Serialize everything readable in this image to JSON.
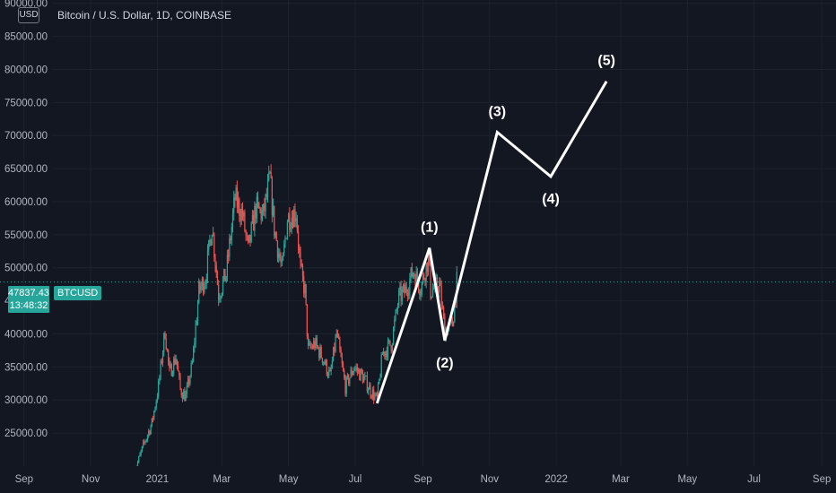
{
  "header": {
    "title": "Bitcoin / U.S. Dollar, 1D, COINBASE",
    "currency_button": "USD"
  },
  "price_tag": {
    "price": "47837.43",
    "countdown": "13:48:32",
    "symbol": "BTCUSD",
    "color": "#26a69a"
  },
  "colors": {
    "background": "#131722",
    "up": "#26a69a",
    "down": "#ef5350",
    "grid": "#1e222d",
    "wave": "#ffffff"
  },
  "chart_data": {
    "type": "candlestick",
    "symbol": "BTCUSD",
    "timeframe": "1D",
    "yaxis": {
      "ticks": [
        25000,
        30000,
        35000,
        40000,
        45000,
        50000,
        55000,
        60000,
        65000,
        70000,
        75000,
        80000,
        85000,
        90000
      ],
      "tick_labels": [
        "25000.00",
        "30000.00",
        "35000.00",
        "40000.00",
        "45000.00",
        "50000.00",
        "55000.00",
        "60000.00",
        "65000.00",
        "70000.00",
        "75000.00",
        "80000.00",
        "85000.00",
        "90000.00"
      ],
      "ylim": [
        20000,
        90500
      ]
    },
    "xaxis": {
      "ticks": [
        "2020-09-01",
        "2020-11-01",
        "2021-01-01",
        "2021-03-01",
        "2021-05-01",
        "2021-07-01",
        "2021-09-01",
        "2021-11-01",
        "2022-01-01",
        "2022-03-01",
        "2022-05-01",
        "2022-07-01",
        "2022-09-01"
      ],
      "tick_labels": [
        "Sep",
        "Nov",
        "2021",
        "Mar",
        "May",
        "Jul",
        "Sep",
        "Nov",
        "2022",
        "Mar",
        "May",
        "Jul",
        "Sep"
      ],
      "xlim": [
        "2020-08-10",
        "2022-09-14"
      ]
    },
    "current_price": 47837.43,
    "price_path": [
      [
        "2020-12-10",
        18500
      ],
      [
        "2020-12-16",
        21500
      ],
      [
        "2020-12-20",
        23500
      ],
      [
        "2020-12-27",
        26500
      ],
      [
        "2021-01-02",
        32000
      ],
      [
        "2021-01-08",
        40500
      ],
      [
        "2021-01-12",
        34000
      ],
      [
        "2021-01-18",
        36500
      ],
      [
        "2021-01-22",
        31500
      ],
      [
        "2021-01-27",
        30500
      ],
      [
        "2021-02-02",
        35500
      ],
      [
        "2021-02-08",
        46500
      ],
      [
        "2021-02-14",
        48500
      ],
      [
        "2021-02-20",
        56500
      ],
      [
        "2021-02-26",
        46000
      ],
      [
        "2021-03-05",
        49000
      ],
      [
        "2021-03-13",
        60500
      ],
      [
        "2021-03-20",
        58000
      ],
      [
        "2021-03-25",
        52500
      ],
      [
        "2021-04-01",
        59000
      ],
      [
        "2021-04-08",
        58000
      ],
      [
        "2021-04-14",
        63500
      ],
      [
        "2021-04-18",
        56000
      ],
      [
        "2021-04-25",
        49500
      ],
      [
        "2021-04-30",
        57500
      ],
      [
        "2021-05-08",
        58500
      ],
      [
        "2021-05-12",
        49500
      ],
      [
        "2021-05-16",
        46500
      ],
      [
        "2021-05-19",
        37500
      ],
      [
        "2021-05-25",
        38500
      ],
      [
        "2021-06-01",
        36500
      ],
      [
        "2021-06-08",
        33500
      ],
      [
        "2021-06-14",
        40000
      ],
      [
        "2021-06-22",
        32000
      ],
      [
        "2021-06-30",
        35000
      ],
      [
        "2021-07-08",
        33500
      ],
      [
        "2021-07-15",
        31500
      ],
      [
        "2021-07-21",
        30000
      ],
      [
        "2021-07-26",
        37000
      ],
      [
        "2021-08-03",
        38500
      ],
      [
        "2021-08-10",
        45500
      ],
      [
        "2021-08-16",
        46500
      ],
      [
        "2021-08-23",
        49500
      ],
      [
        "2021-08-30",
        47000
      ],
      [
        "2021-09-06",
        51500
      ],
      [
        "2021-09-08",
        46500
      ],
      [
        "2021-09-16",
        47500
      ],
      [
        "2021-09-21",
        40500
      ],
      [
        "2021-09-28",
        41500
      ],
      [
        "2021-10-02",
        47837
      ]
    ],
    "wave_projection": {
      "points": [
        {
          "date": "2021-07-21",
          "price": 29500,
          "label": ""
        },
        {
          "date": "2021-09-07",
          "price": 53000,
          "label": "(1)"
        },
        {
          "date": "2021-09-21",
          "price": 39000,
          "label": "(2)"
        },
        {
          "date": "2021-11-08",
          "price": 70500,
          "label": "(3)"
        },
        {
          "date": "2021-12-27",
          "price": 63800,
          "label": "(4)"
        },
        {
          "date": "2022-02-16",
          "price": 78200,
          "label": "(5)"
        }
      ]
    }
  }
}
